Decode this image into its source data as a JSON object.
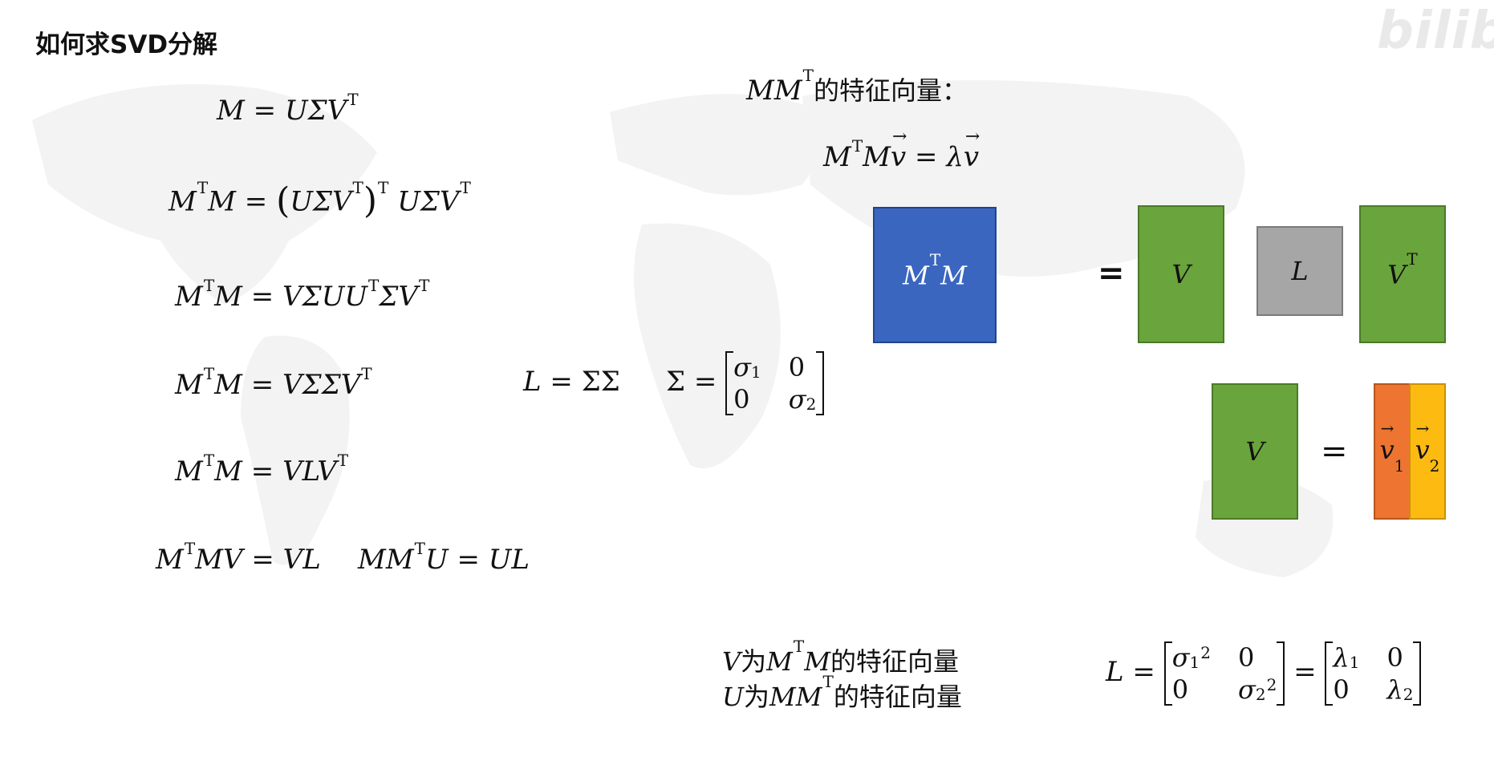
{
  "slide": {
    "title": "如何求SVD分解",
    "logo_text": "bilibili"
  },
  "left_equations": {
    "eq1": {
      "lhs": "M",
      "rhs_a": "UΣV",
      "sup_a": "T"
    },
    "eq2": {
      "lhs_a": "M",
      "lhs_sup": "T",
      "lhs_b": "M",
      "rhs_paren": "UΣV",
      "rhs_paren_sup": "T",
      "rhs_outer_sup": "T",
      "rhs_b": "UΣV",
      "rhs_b_sup": "T"
    },
    "eq3": {
      "lhs_a": "M",
      "lhs_sup": "T",
      "lhs_b": "M",
      "rhs_a": "VΣUU",
      "rhs_sup_a": "T",
      "rhs_b": "ΣV",
      "rhs_sup_b": "T"
    },
    "eq4": {
      "lhs_a": "M",
      "lhs_sup": "T",
      "lhs_b": "M",
      "rhs_a": "VΣΣV",
      "rhs_sup": "T"
    },
    "eq5": {
      "lhs_a": "M",
      "lhs_sup": "T",
      "lhs_b": "M",
      "rhs_a": "VLV",
      "rhs_sup": "T"
    },
    "eq6a": {
      "lhs_a": "M",
      "lhs_sup": "T",
      "lhs_b": "MV",
      "rhs": "VL"
    },
    "eq6b": {
      "lhs_a": "MM",
      "lhs_sup": "T",
      "lhs_b": "U",
      "rhs": "UL"
    }
  },
  "middle_equations": {
    "l_def": {
      "lhs": "L",
      "rhs": "ΣΣ"
    },
    "sigma_def": {
      "lhs": "Σ",
      "m11": "σ",
      "m11_sub": "1",
      "m12": "0",
      "m21": "0",
      "m22": "σ",
      "m22_sub": "2"
    }
  },
  "right_top": {
    "heading_a": "MM",
    "heading_sup": "T",
    "heading_zh": "的特征向量：",
    "eigen_eq": {
      "lhs_a": "M",
      "lhs_sup": "T",
      "lhs_b": "M",
      "vec": "v",
      "rhs_lambda": "λ",
      "rhs_vec": "v"
    }
  },
  "blocks": {
    "mtm": {
      "a": "M",
      "sup": "T",
      "b": "M",
      "color": "#3a66c0"
    },
    "equals": "=",
    "v": {
      "label": "V",
      "color": "#6aa43c"
    },
    "l": {
      "label": "L",
      "color": "#a6a6a6"
    },
    "vt": {
      "label": "V",
      "sup": "T",
      "color": "#6aa43c"
    },
    "v2": {
      "label": "V",
      "color": "#6aa43c"
    },
    "equals2": "=",
    "v1col": {
      "label": "v",
      "sub": "1",
      "color": "#ed7431"
    },
    "v2col": {
      "label": "v",
      "sub": "2",
      "color": "#fdbb12"
    }
  },
  "bottom_text": {
    "line1_a": "V",
    "line1_zh1": "为",
    "line1_b": "M",
    "line1_sup": "T",
    "line1_c": "M",
    "line1_zh2": "的特征向量",
    "line2_a": "U",
    "line2_zh1": "为",
    "line2_b": "MM",
    "line2_sup": "T",
    "line2_zh2": "的特征向量"
  },
  "bottom_matrix": {
    "lhs": "L",
    "a11": "σ",
    "a11_sub": "1",
    "a11_sup": "2",
    "a12": "0",
    "a21": "0",
    "a22": "σ",
    "a22_sub": "2",
    "a22_sup": "2",
    "b11": "λ",
    "b11_sub": "1",
    "b12": "0",
    "b21": "0",
    "b22": "λ",
    "b22_sub": "2"
  }
}
